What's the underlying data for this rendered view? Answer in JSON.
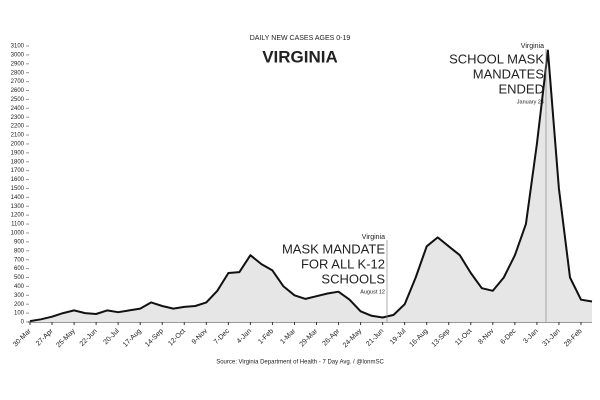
{
  "chart_data": {
    "type": "line",
    "title": "DAILY NEW CASES AGES 0-19",
    "subtitle": "VIRGINIA",
    "source": "Source: Virginia Department of Health - 7 Day Avg. / @lonmSC",
    "categories": [
      "30-Mar",
      null,
      "27-Apr",
      null,
      "25-May",
      null,
      "22-Jun",
      null,
      "20-Jul",
      null,
      "17-Aug",
      null,
      "14-Sep",
      null,
      "12-Oct",
      null,
      "9-Nov",
      null,
      "7-Dec",
      null,
      "4-Jan",
      null,
      "1-Feb",
      null,
      "1-Mar",
      null,
      "29-Mar",
      null,
      "26-Apr",
      null,
      "24-May",
      null,
      "21-Jun",
      null,
      "19-Jul",
      null,
      "16-Aug",
      null,
      "13-Sep",
      null,
      "11-Oct",
      null,
      "8-Nov",
      null,
      "6-Dec",
      null,
      "3-Jan",
      null,
      "31-Jan",
      null,
      "28-Feb",
      null
    ],
    "series": [
      {
        "name": "Virginia",
        "color": "#111111",
        "values": [
          10,
          30,
          60,
          100,
          130,
          100,
          90,
          130,
          110,
          130,
          150,
          220,
          180,
          150,
          170,
          180,
          220,
          350,
          550,
          560,
          750,
          650,
          580,
          400,
          300,
          260,
          290,
          320,
          340,
          250,
          120,
          70,
          50,
          80,
          200,
          500,
          850,
          950,
          850,
          750,
          550,
          380,
          350,
          500,
          750,
          1100,
          2000,
          3050,
          1500,
          500,
          250,
          230
        ]
      }
    ],
    "ylim": [
      0,
      3100
    ],
    "yticks": [
      0,
      100,
      200,
      300,
      400,
      500,
      600,
      700,
      800,
      900,
      1000,
      1100,
      1200,
      1300,
      1400,
      1500,
      1600,
      1700,
      1800,
      1900,
      2000,
      2100,
      2200,
      2300,
      2400,
      2500,
      2600,
      2700,
      2800,
      2900,
      3000,
      3100
    ],
    "annotations": [
      {
        "label": "Virginia",
        "text": [
          "MASK MANDATE",
          "FOR ALL K-12",
          "SCHOOLS"
        ],
        "date": "August 12"
      },
      {
        "label": "Virginia",
        "text": [
          "SCHOOL MASK",
          "MANDATES",
          "ENDED"
        ],
        "date": "January 24"
      }
    ]
  }
}
